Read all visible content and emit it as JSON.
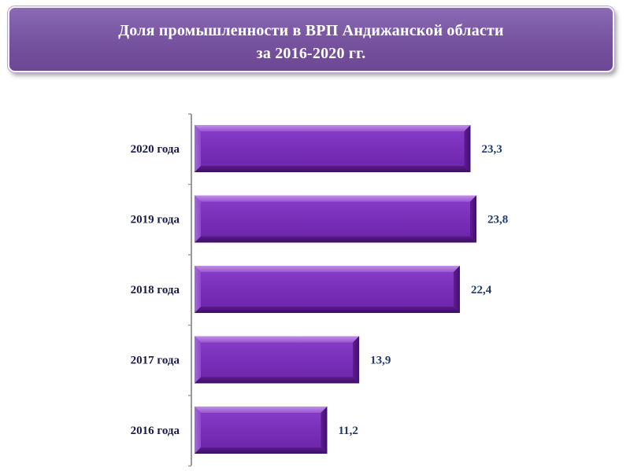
{
  "header": {
    "title_line1": "Доля промышленности в ВРП Андижанской области",
    "title_line2": "за 2016-2020 гг."
  },
  "colors": {
    "bar": "#7a30b8",
    "bar_dark": "#4b1577",
    "bar_light": "#b781e4",
    "banner": "#7b57a5",
    "axis": "#9a9a9a",
    "value_text": "#1f3a6e"
  },
  "chart_data": {
    "type": "bar",
    "orientation": "horizontal",
    "title": "Доля промышленности в ВРП Андижанской области за 2016-2020 гг.",
    "categories": [
      "2020 года",
      "2019 года",
      "2018 года",
      "2017 года",
      "2016 года"
    ],
    "values": [
      23.3,
      23.8,
      22.4,
      13.9,
      11.2
    ],
    "value_labels": [
      "23,3",
      "23,8",
      "22,4",
      "13,9",
      "11,2"
    ],
    "xlim": [
      0,
      24
    ],
    "grid": false,
    "legend": "none"
  }
}
